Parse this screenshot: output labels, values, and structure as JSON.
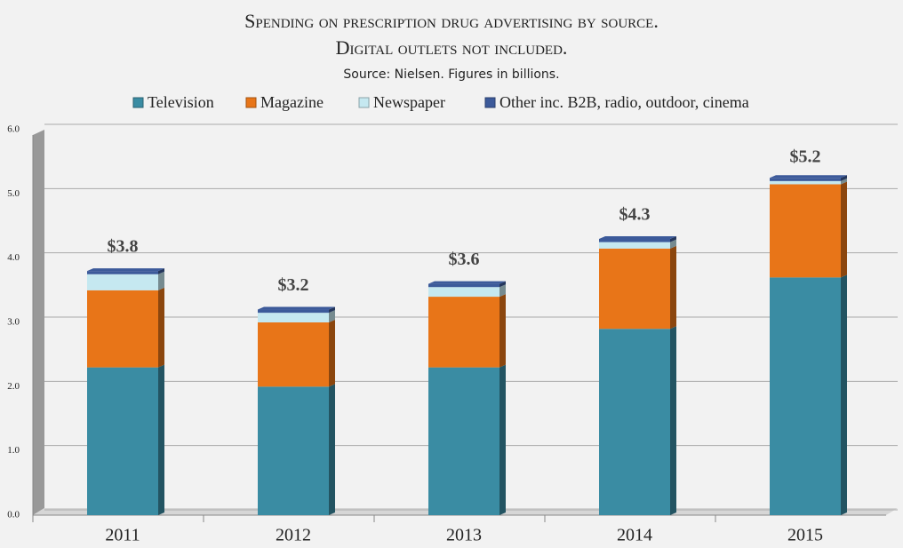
{
  "chart_data": {
    "type": "stacked-bar",
    "title": [
      "Spending on prescription drug advertising by source.",
      "Digital outlets not included."
    ],
    "subtitle": "Source: Nielsen. Figures in billions.",
    "categories": [
      "2011",
      "2012",
      "2013",
      "2014",
      "2015"
    ],
    "series": [
      {
        "name": "Television",
        "color": "#3a8ca3",
        "values": [
          2.3,
          2.0,
          2.3,
          2.9,
          3.7
        ]
      },
      {
        "name": "Magazine",
        "color": "#e87518",
        "values": [
          1.2,
          1.0,
          1.1,
          1.25,
          1.45
        ]
      },
      {
        "name": "Newspaper",
        "color": "#c5e8f0",
        "values": [
          0.25,
          0.15,
          0.15,
          0.1,
          0.05
        ]
      },
      {
        "name": "Other inc. B2B, radio, outdoor, cinema",
        "color": "#3c5a9a",
        "values": [
          0.05,
          0.05,
          0.05,
          0.05,
          0.05
        ]
      }
    ],
    "totals": [
      3.8,
      3.2,
      3.6,
      4.3,
      5.2
    ],
    "total_labels": [
      "$3.8",
      "$3.2",
      "$3.6",
      "$4.3",
      "$5.2"
    ],
    "ylim": [
      0,
      6
    ],
    "yticks": [
      {
        "value": 0,
        "label": "0.0"
      },
      {
        "value": 1,
        "label": "1.0"
      },
      {
        "value": 2,
        "label": "2.0"
      },
      {
        "value": 3,
        "label": "3.0"
      },
      {
        "value": 4,
        "label": "4.0"
      },
      {
        "value": 5,
        "label": "5.0"
      },
      {
        "value": 6,
        "label": "6.0"
      }
    ],
    "grid": true
  }
}
